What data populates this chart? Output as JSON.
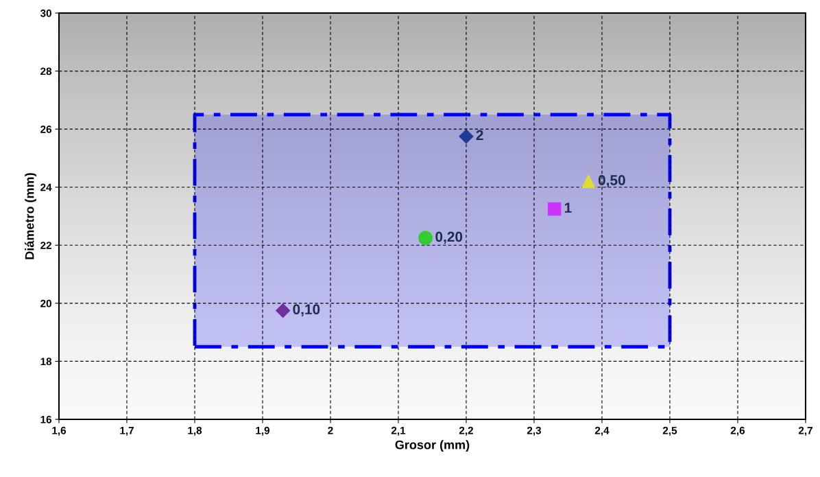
{
  "chart_data": {
    "type": "scatter",
    "xlabel": "Grosor (mm)",
    "ylabel": "Diámetro (mm)",
    "xlim": [
      1.6,
      2.7
    ],
    "ylim": [
      16,
      30
    ],
    "xticks": [
      {
        "value": 1.6,
        "label": "1,6"
      },
      {
        "value": 1.7,
        "label": "1,7"
      },
      {
        "value": 1.8,
        "label": "1,8"
      },
      {
        "value": 1.9,
        "label": "1,9"
      },
      2,
      {
        "value": 2.1,
        "label": "2,1"
      },
      {
        "value": 2.2,
        "label": "2,2"
      },
      {
        "value": 2.3,
        "label": "2,3"
      },
      {
        "value": 2.4,
        "label": "2,4"
      },
      {
        "value": 2.5,
        "label": "2,5"
      },
      {
        "value": 2.6,
        "label": "2,6"
      },
      {
        "value": 2.7,
        "label": "2,7"
      }
    ],
    "yticks": [
      16,
      18,
      20,
      22,
      24,
      26,
      28,
      30
    ],
    "grid": true,
    "legend": false,
    "series": [
      {
        "type": "area",
        "color": "#0000ff",
        "line_style": "dashed",
        "x": [
          1.8,
          2.5,
          2.5,
          1.8,
          1.8
        ],
        "values": [
          18.5,
          18.5,
          26.5,
          26.5,
          18.5
        ]
      },
      {
        "name": "0,10",
        "color": "#7030a0",
        "marker": "diamond",
        "x": [
          1.93
        ],
        "values": [
          19.75
        ]
      },
      {
        "name": "0,20",
        "color": "#33cc33",
        "marker": "circle",
        "x": [
          2.14
        ],
        "values": [
          22.25
        ]
      },
      {
        "name": "0,50",
        "color": "#dddd33",
        "marker": "triangle",
        "x": [
          2.38
        ],
        "values": [
          24.2
        ]
      },
      {
        "name": "1",
        "color": "#cc33ff",
        "marker": "square",
        "x": [
          2.33
        ],
        "values": [
          23.25
        ]
      },
      {
        "name": "2",
        "color": "#1f3c99",
        "marker": "diamond",
        "x": [
          2.2
        ],
        "values": [
          25.75
        ]
      }
    ]
  }
}
